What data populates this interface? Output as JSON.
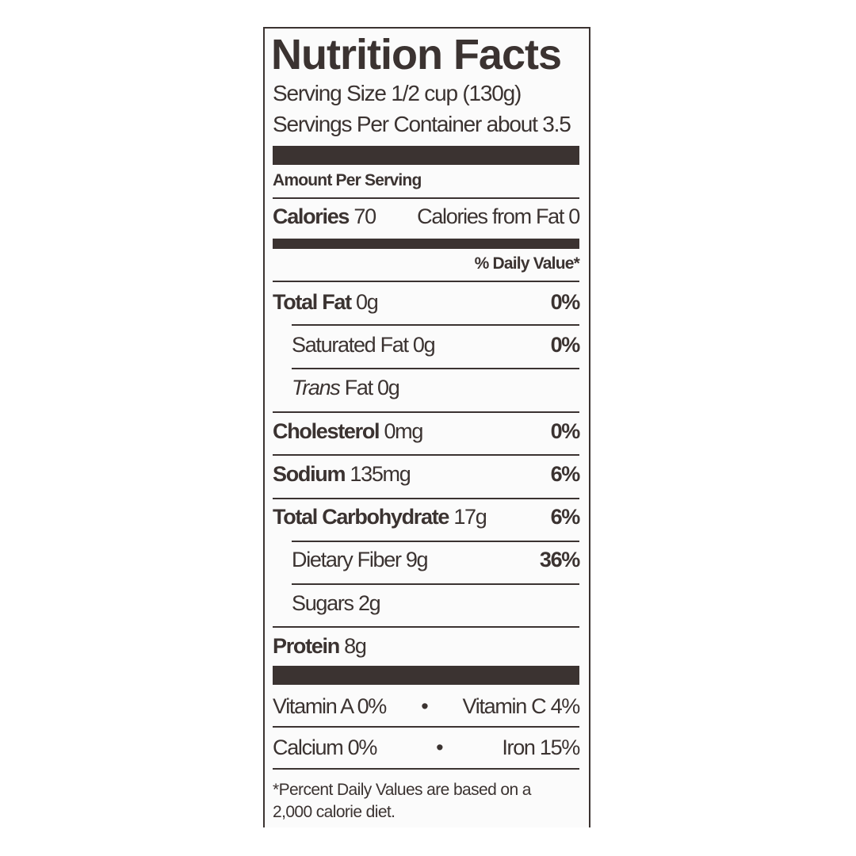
{
  "title": "Nutrition Facts",
  "serving_size": "Serving Size 1/2 cup (130g)",
  "servings_per_container": "Servings Per Container about 3.5",
  "amount_per_serving": "Amount Per Serving",
  "calories": {
    "label": "Calories",
    "value": "70",
    "from_fat": "Calories from Fat 0"
  },
  "daily_value_header": "% Daily Value*",
  "nutrients": [
    {
      "label": "Total Fat",
      "amount": "0g",
      "dv": "0%"
    },
    {
      "label": "Saturated Fat",
      "amount": "0g",
      "dv": "0%"
    },
    {
      "label": "Trans",
      "suffix": "Fat 0g",
      "dv": ""
    },
    {
      "label": "Cholesterol",
      "amount": "0mg",
      "dv": "0%"
    },
    {
      "label": "Sodium",
      "amount": "135mg",
      "dv": "6%"
    },
    {
      "label": "Total Carbohydrate",
      "amount": "17g",
      "dv": "6%"
    },
    {
      "label": "Dietary Fiber",
      "amount": "9g",
      "dv": "36%"
    },
    {
      "label": "Sugars",
      "amount": "2g",
      "dv": ""
    },
    {
      "label": "Protein",
      "amount": "8g",
      "dv": ""
    }
  ],
  "vitamins": [
    {
      "left": "Vitamin A 0%",
      "right": "Vitamin C 4%"
    },
    {
      "left": "Calcium 0%",
      "right": "Iron 15%"
    }
  ],
  "bullet": "•",
  "footnote_line1": "*Percent Daily Values are based on a",
  "footnote_line2": "2,000 calorie diet."
}
